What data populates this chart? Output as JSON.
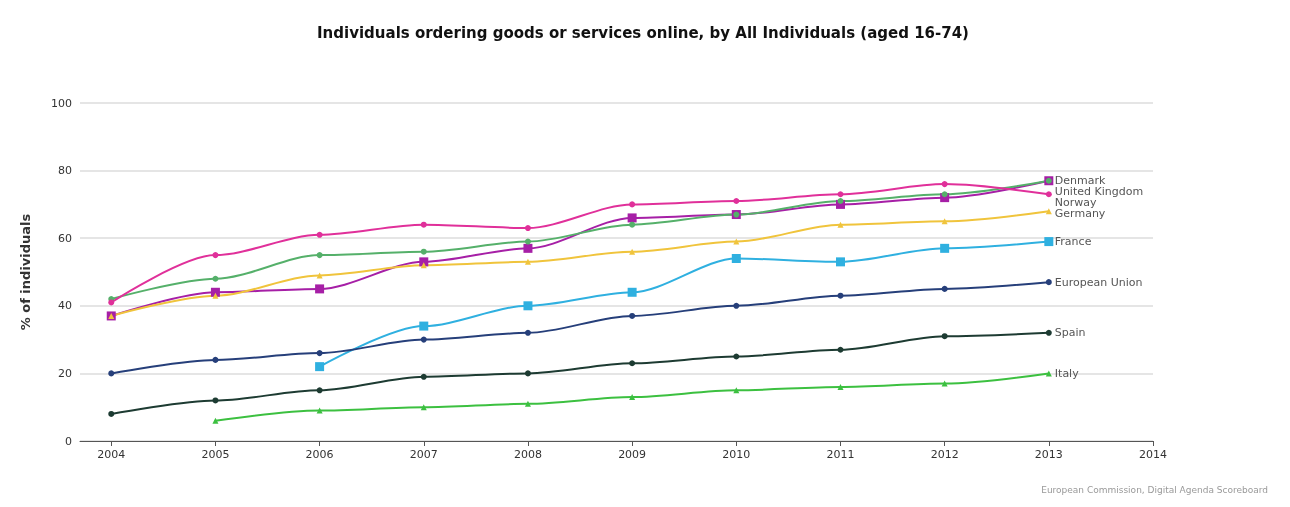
{
  "chart_data": {
    "type": "line",
    "title": "Individuals ordering goods or services online, by All Individuals (aged 16-74)",
    "ylabel": "% of individuals",
    "xlim": [
      2003.7,
      2014
    ],
    "xticks": [
      2004,
      2005,
      2006,
      2007,
      2008,
      2009,
      2010,
      2011,
      2012,
      2013,
      2014
    ],
    "ylim": [
      0,
      100
    ],
    "yticks": [
      0,
      20,
      40,
      60,
      80,
      100
    ],
    "grid": "y",
    "legend": false,
    "line_style": "solid",
    "annotations": [
      "European Commission, Digital Agenda Scoreboard"
    ],
    "x": [
      2004,
      2005,
      2006,
      2007,
      2008,
      2009,
      2010,
      2011,
      2012,
      2013
    ],
    "series": [
      {
        "name": "Denmark",
        "color": "#a61fa6",
        "marker": "square",
        "values": [
          37,
          44,
          45,
          53,
          57,
          66,
          67,
          70,
          72,
          77
        ]
      },
      {
        "name": "United Kingdom",
        "color": "#55b06a",
        "marker": "circle",
        "values": [
          42,
          48,
          55,
          56,
          59,
          64,
          67,
          71,
          73,
          77
        ]
      },
      {
        "name": "Norway",
        "color": "#e0309a",
        "marker": "circle",
        "values": [
          41,
          55,
          61,
          64,
          63,
          70,
          71,
          73,
          76,
          73
        ]
      },
      {
        "name": "Germany",
        "color": "#f0c43c",
        "marker": "triangle",
        "values": [
          37,
          43,
          49,
          52,
          53,
          56,
          59,
          64,
          65,
          68
        ]
      },
      {
        "name": "France",
        "color": "#2fb0e0",
        "marker": "square",
        "values": [
          null,
          null,
          22,
          34,
          40,
          44,
          54,
          53,
          57,
          59
        ]
      },
      {
        "name": "European Union",
        "color": "#263f7a",
        "marker": "circle",
        "values": [
          20,
          24,
          26,
          30,
          32,
          37,
          40,
          43,
          45,
          47
        ]
      },
      {
        "name": "Spain",
        "color": "#1d3b32",
        "marker": "circle",
        "values": [
          8,
          12,
          15,
          19,
          20,
          23,
          25,
          27,
          31,
          32
        ]
      },
      {
        "name": "Italy",
        "color": "#3cc040",
        "marker": "triangle",
        "values": [
          null,
          6,
          9,
          10,
          11,
          13,
          15,
          16,
          17,
          20
        ]
      }
    ]
  }
}
